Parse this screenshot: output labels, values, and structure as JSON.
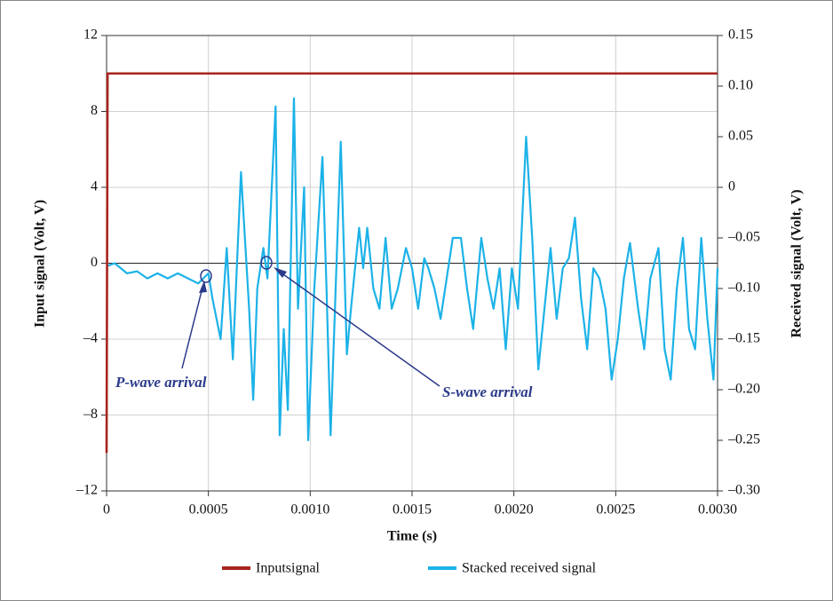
{
  "chart_data": {
    "type": "line",
    "xlabel": "Time (s)",
    "ylabel": "Input signal (Volt, V)",
    "y2label": "Received signal (Volt, V)",
    "xlim": [
      0,
      0.003
    ],
    "xticks": [
      0,
      0.0005,
      {
        "value": 0.001,
        "label": "0.0010"
      },
      0.0015,
      {
        "value": 0.002,
        "label": "0.0020"
      },
      0.0025,
      {
        "value": 0.003,
        "label": "0.0030"
      }
    ],
    "ylim": [
      -12,
      12
    ],
    "yticks": [
      {
        "value": -12,
        "label": "–12"
      },
      {
        "value": -8,
        "label": "–8"
      },
      {
        "value": -4,
        "label": "–4"
      },
      0,
      4,
      8,
      12
    ],
    "y2lim": [
      -0.3,
      0.15
    ],
    "y2ticks": [
      {
        "value": -0.3,
        "label": "–0.30"
      },
      {
        "value": -0.25,
        "label": "–0.25"
      },
      {
        "value": -0.2,
        "label": "–0.20"
      },
      {
        "value": -0.15,
        "label": "–0.15"
      },
      {
        "value": -0.1,
        "label": "–0.10"
      },
      {
        "value": -0.05,
        "label": "–0.05"
      },
      0,
      0.05,
      {
        "value": 0.1,
        "label": "0.10"
      },
      0.15
    ],
    "grid": true,
    "legend": "bottom",
    "annotations": [
      {
        "text": "P-wave arrival"
      },
      {
        "text": "S-wave arrival"
      }
    ],
    "series": [
      {
        "name": "Inputsignal",
        "color": "#a8241e",
        "axis": "y",
        "x": [
          0,
          5e-06,
          0.003
        ],
        "values": [
          -10,
          10,
          10
        ]
      },
      {
        "name": "Stacked received signal",
        "color": "#1cb2e8",
        "axis": "y2",
        "x": [
          0,
          4e-05,
          0.0001,
          0.00015,
          0.0002,
          0.00025,
          0.0003,
          0.00035,
          0.0004,
          0.00045,
          0.0005,
          0.00052,
          0.00056,
          0.00059,
          0.00062,
          0.00066,
          0.0007,
          0.00072,
          0.00074,
          0.00077,
          0.00079,
          0.00083,
          0.00085,
          0.00087,
          0.00089,
          0.00092,
          0.00094,
          0.00097,
          0.00099,
          0.00102,
          0.00106,
          0.00108,
          0.0011,
          0.00113,
          0.00115,
          0.00118,
          0.0012,
          0.00124,
          0.00126,
          0.00128,
          0.00131,
          0.00134,
          0.00137,
          0.0014,
          0.00143,
          0.00147,
          0.0015,
          0.00153,
          0.00156,
          0.00158,
          0.00161,
          0.00164,
          0.00167,
          0.0017,
          0.00174,
          0.00177,
          0.0018,
          0.00184,
          0.00187,
          0.0019,
          0.00193,
          0.00196,
          0.00199,
          0.00202,
          0.00206,
          0.00209,
          0.00212,
          0.00215,
          0.00218,
          0.00221,
          0.00224,
          0.00227,
          0.0023,
          0.00233,
          0.00236,
          0.00239,
          0.00242,
          0.00245,
          0.00248,
          0.00251,
          0.00254,
          0.00257,
          0.00261,
          0.00264,
          0.00267,
          0.00271,
          0.00274,
          0.00277,
          0.0028,
          0.00283,
          0.00286,
          0.00289,
          0.00292,
          0.00295,
          0.00298,
          0.003
        ],
        "values": [
          -0.078,
          -0.075,
          -0.085,
          -0.083,
          -0.09,
          -0.085,
          -0.09,
          -0.085,
          -0.09,
          -0.095,
          -0.085,
          -0.11,
          -0.15,
          -0.06,
          -0.17,
          0.015,
          -0.12,
          -0.21,
          -0.1,
          -0.06,
          -0.09,
          0.08,
          -0.245,
          -0.14,
          -0.22,
          0.088,
          -0.12,
          0,
          -0.25,
          -0.1,
          0.03,
          -0.1,
          -0.245,
          -0.07,
          0.045,
          -0.165,
          -0.12,
          -0.04,
          -0.08,
          -0.04,
          -0.1,
          -0.12,
          -0.05,
          -0.12,
          -0.1,
          -0.06,
          -0.08,
          -0.12,
          -0.07,
          -0.08,
          -0.1,
          -0.13,
          -0.09,
          -0.05,
          -0.05,
          -0.1,
          -0.14,
          -0.05,
          -0.09,
          -0.12,
          -0.08,
          -0.16,
          -0.08,
          -0.12,
          0.05,
          -0.05,
          -0.18,
          -0.12,
          -0.06,
          -0.13,
          -0.08,
          -0.07,
          -0.03,
          -0.11,
          -0.16,
          -0.08,
          -0.09,
          -0.12,
          -0.19,
          -0.15,
          -0.09,
          -0.055,
          -0.12,
          -0.16,
          -0.09,
          -0.06,
          -0.16,
          -0.19,
          -0.1,
          -0.05,
          -0.14,
          -0.16,
          -0.05,
          -0.13,
          -0.19,
          -0.08
        ]
      }
    ]
  }
}
